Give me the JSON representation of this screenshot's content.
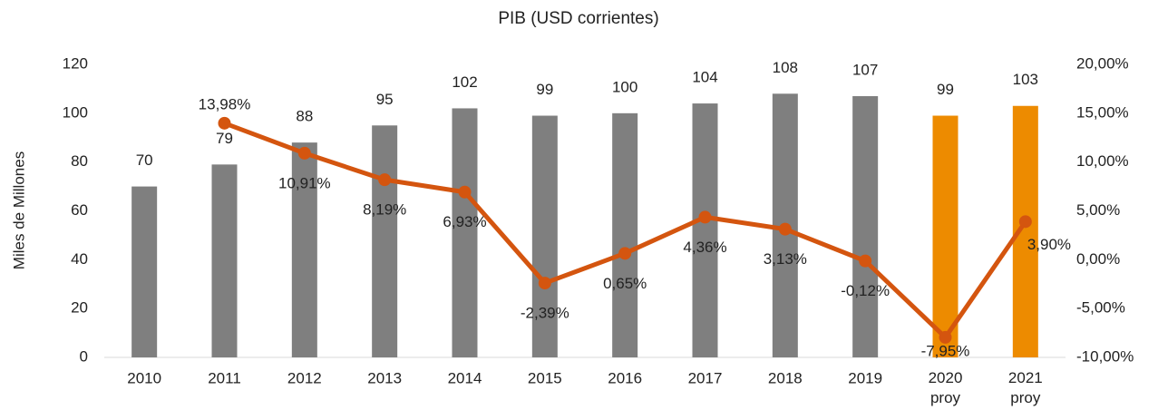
{
  "chart_data": {
    "type": "bar_line",
    "title": "PIB (USD corrientes)",
    "y_label": "Miles de Millones",
    "categories": [
      "2010",
      "2011",
      "2012",
      "2013",
      "2014",
      "2015",
      "2016",
      "2017",
      "2018",
      "2019",
      "2020 proy",
      "2021 proy"
    ],
    "series": [
      {
        "type": "bar",
        "values": [
          70,
          79,
          88,
          95,
          102,
          99,
          100,
          104,
          108,
          107,
          99,
          103
        ],
        "colors": [
          "#7f7f7f",
          "#7f7f7f",
          "#7f7f7f",
          "#7f7f7f",
          "#7f7f7f",
          "#7f7f7f",
          "#7f7f7f",
          "#7f7f7f",
          "#7f7f7f",
          "#7f7f7f",
          "#ed8b00",
          "#ed8b00"
        ]
      },
      {
        "type": "line",
        "axis": "y2",
        "color": "#d4550f",
        "values": [
          null,
          13.98,
          10.91,
          8.19,
          6.93,
          -2.39,
          0.65,
          4.36,
          3.13,
          -0.12,
          -7.95,
          3.9
        ],
        "value_labels": [
          null,
          "13,98%",
          "10,91%",
          "8,19%",
          "6,93%",
          "-2,39%",
          "0,65%",
          "4,36%",
          "3,13%",
          "-0,12%",
          "-7,95%",
          "3,90%"
        ]
      }
    ],
    "ylim": [
      0,
      120
    ],
    "yticks": [
      0,
      20,
      40,
      60,
      80,
      100,
      120
    ],
    "y2lim": [
      -10,
      20
    ],
    "y2ticks": [
      {
        "value": -10,
        "label": "-10,00%"
      },
      {
        "value": -5,
        "label": "-5,00%"
      },
      {
        "value": 0,
        "label": "0,00%"
      },
      {
        "value": 5,
        "label": "5,00%"
      },
      {
        "value": 10,
        "label": "10,00%"
      },
      {
        "value": 15,
        "label": "15,00%"
      },
      {
        "value": 20,
        "label": "20,00%"
      }
    ],
    "grid": false
  }
}
